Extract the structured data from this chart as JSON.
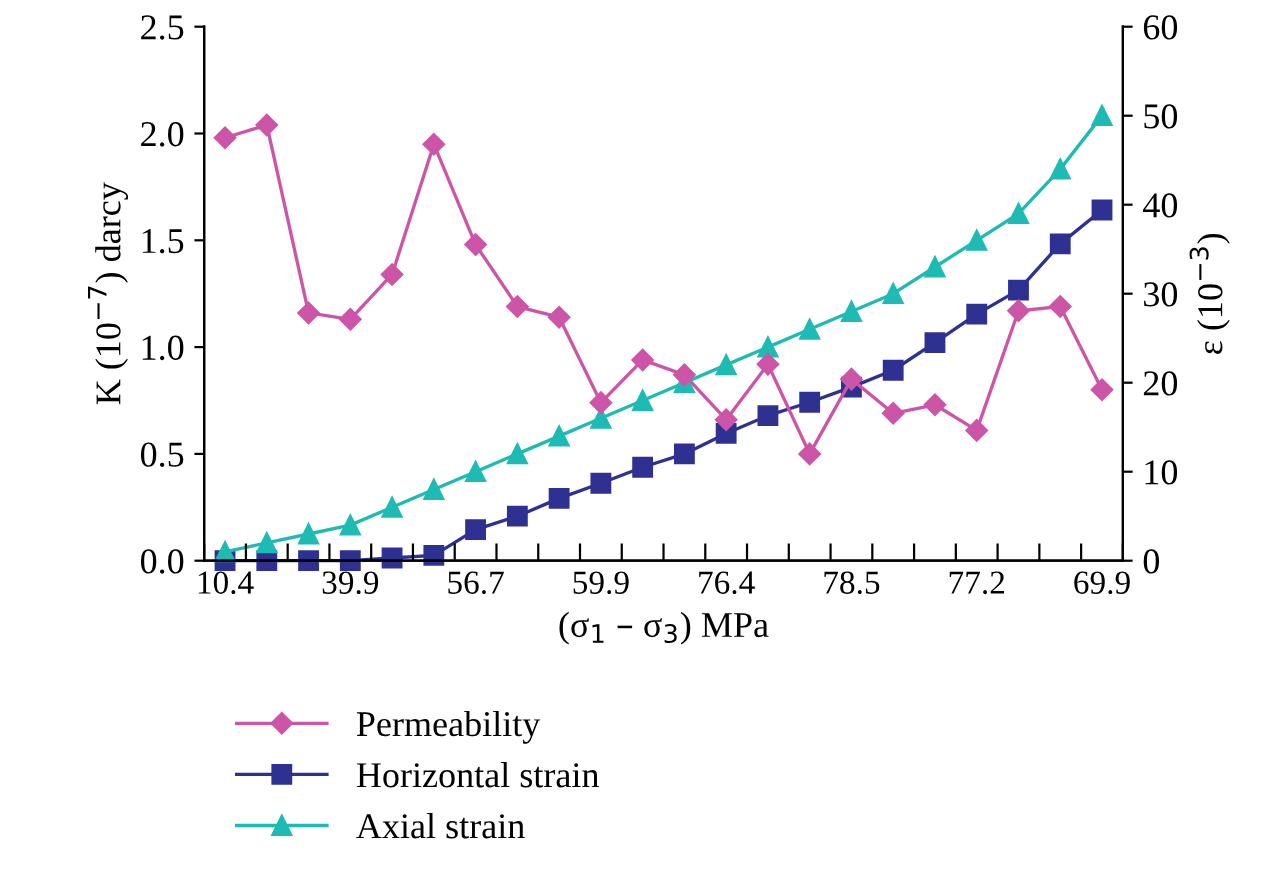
{
  "chart_data": {
    "type": "line",
    "xlabel": "(σ$_{1}$ – σ$_{3}$) MPa",
    "ylabel": "K (10$^{−7}$) darcy",
    "y2label": "ε (10$^{−3}$)",
    "categories": [
      "10.4",
      null,
      null,
      "39.9",
      null,
      null,
      "56.7",
      null,
      null,
      "59.9",
      null,
      null,
      "76.4",
      null,
      null,
      "78.5",
      null,
      null,
      "77.2",
      null,
      null,
      "69.9"
    ],
    "series": [
      {
        "name": "Permeability",
        "color": "#cc55a8",
        "marker": "diamond",
        "values": [
          1.98,
          2.04,
          1.16,
          1.13,
          1.34,
          1.95,
          1.48,
          1.19,
          1.14,
          0.74,
          0.94,
          0.87,
          0.66,
          0.92,
          0.5,
          0.85,
          0.69,
          0.73,
          0.61,
          1.17,
          1.19,
          0.8
        ]
      },
      {
        "name": "Horizontal strain",
        "color": "#2e3192",
        "marker": "square",
        "axis": "y2",
        "values": [
          0,
          0,
          0,
          0,
          0.3,
          0.6,
          3.5,
          5,
          7,
          8.7,
          10.5,
          12,
          14.3,
          16.3,
          17.8,
          19.5,
          21.4,
          24.5,
          27.7,
          30.4,
          35.6,
          39.4
        ]
      },
      {
        "name": "Axial strain",
        "color": "#1dbbb4",
        "marker": "triangle",
        "axis": "y2",
        "values": [
          1,
          2,
          3,
          4,
          6,
          8,
          10,
          12,
          14,
          16,
          18,
          20,
          22,
          24,
          26,
          28,
          30,
          33,
          36,
          39,
          44,
          50
        ]
      }
    ],
    "ylim": [
      0,
      2.5
    ],
    "yticks": [
      {
        "value": 0,
        "label": "0.0"
      },
      {
        "value": 0.5,
        "label": "0.5"
      },
      {
        "value": 1,
        "label": "1.0"
      },
      {
        "value": 1.5,
        "label": "1.5"
      },
      {
        "value": 2,
        "label": "2.0"
      },
      {
        "value": 2.5,
        "label": "2.5"
      }
    ],
    "y2lim": [
      0,
      60
    ],
    "y2ticks": [
      0,
      10,
      20,
      30,
      40,
      50,
      60
    ],
    "legend": "bottom left",
    "grid": false
  }
}
